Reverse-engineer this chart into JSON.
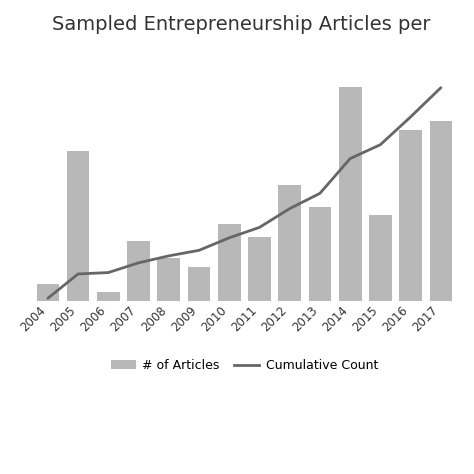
{
  "years": [
    2004,
    2005,
    2006,
    2007,
    2008,
    2009,
    2010,
    2011,
    2012,
    2013,
    2014,
    2015,
    2016,
    2017
  ],
  "articles": [
    4,
    35,
    2,
    14,
    10,
    8,
    18,
    15,
    27,
    22,
    50,
    20,
    40,
    42
  ],
  "cumulative": [
    4,
    39,
    41,
    55,
    65,
    73,
    91,
    106,
    133,
    155,
    205,
    225,
    265,
    307
  ],
  "bar_color": "#b8b8b8",
  "line_color": "#666666",
  "title": "Sampled Entrepreneurship Articles per ",
  "title_fontsize": 14,
  "legend_bar_label": "# of Articles",
  "legend_line_label": "Cumulative Count",
  "background_color": "#ffffff",
  "grid_color": "#d0d0d0",
  "bar_ylim": [
    0,
    60
  ],
  "cum_ylim": [
    0,
    370
  ]
}
